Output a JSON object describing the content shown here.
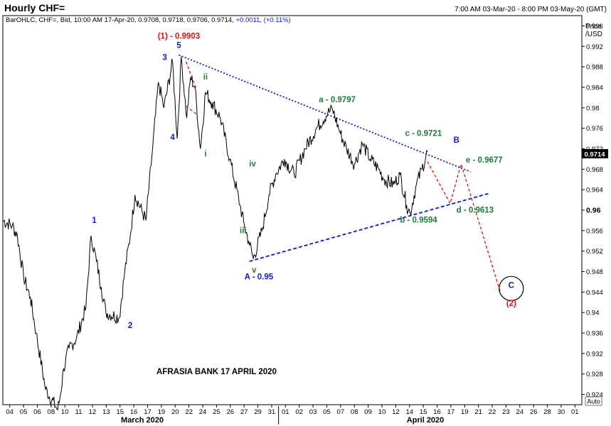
{
  "header": {
    "title": "Hourly CHF=",
    "date_range": "7:00 AM 03-Mar-20 - 8:00 PM 03-May-20 (GMT)",
    "info_prefix": "BarOHLC, CHF=, Bid, 10:00 AM 17-Apr-20, 0.9708, 0.9718, 0.9706, 0.9714, ",
    "info_change": "+0.0011, (+0.11%)"
  },
  "axis": {
    "price_label": "Price",
    "unit_label": "/USD",
    "last_price": "0.9714",
    "auto_label": "Auto",
    "month_march": "March 2020",
    "month_april": "April 2020"
  },
  "watermark": "AFRASIA BANK 17 APRIL 2020",
  "colors": {
    "blue": "#0b1bd0",
    "green": "#1f7a3a",
    "red": "#e01010",
    "price_line": "#000000"
  },
  "chart_data": {
    "type": "line",
    "series": [
      {
        "name": "",
        "x": [
          "2020-03-03T07:00",
          "2020-03-04T07:00",
          "2020-03-04T20:00",
          "2020-03-05T12:00",
          "2020-03-06T05:00",
          "2020-03-06T20:00",
          "2020-03-07T20:00",
          "2020-03-09T03:00",
          "2020-03-09T10:00",
          "2020-03-09T18:00",
          "2020-03-10T08:00",
          "2020-03-11T03:00",
          "2020-03-12T03:00",
          "2020-03-12T16:00",
          "2020-03-13T06:00",
          "2020-03-13T18:00",
          "2020-03-14T06:00",
          "2020-03-15T16:00",
          "2020-03-16T06:00",
          "2020-03-16T20:00",
          "2020-03-17T08:00",
          "2020-03-18T12:00",
          "2020-03-19T05:00",
          "2020-03-19T20:00",
          "2020-03-20T10:00",
          "2020-03-21T08:00",
          "2020-03-21T20:00",
          "2020-03-22T06:00",
          "2020-03-22T20:00",
          "2020-03-23T06:00",
          "2020-03-23T17:00",
          "2020-03-24T07:00",
          "2020-03-24T20:00",
          "2020-03-25T13:00",
          "2020-03-26T10:00",
          "2020-03-27T10:00",
          "2020-03-28T12:00",
          "2020-03-28T23:00",
          "2020-03-29T10:00",
          "2020-03-29T22:00",
          "2020-03-30T20:00",
          "2020-03-31T14:00",
          "2020-04-01T07:00",
          "2020-04-02T05:00",
          "2020-04-03T06:00",
          "2020-04-04T10:00",
          "2020-04-05T15:00",
          "2020-04-06T20:00",
          "2020-04-07T08:00",
          "2020-04-08T04:00",
          "2020-04-08T20:00",
          "2020-04-09T16:00",
          "2020-04-10T12:00",
          "2020-04-11T08:00",
          "2020-04-12T06:00",
          "2020-04-12T20:00",
          "2020-04-13T20:00",
          "2020-04-14T12:00",
          "2020-04-15T05:00",
          "2020-04-15T14:00",
          "2020-04-16T06:00",
          "2020-04-16T20:00",
          "2020-04-17T10:00"
        ],
        "values": [
          0.958,
          0.957,
          0.955,
          0.947,
          0.943,
          0.936,
          0.925,
          0.921,
          0.924,
          0.929,
          0.933,
          0.935,
          0.941,
          0.955,
          0.95,
          0.945,
          0.94,
          0.939,
          0.948,
          0.955,
          0.963,
          0.958,
          0.972,
          0.985,
          0.98,
          0.989,
          0.974,
          0.99,
          0.978,
          0.986,
          0.984,
          0.972,
          0.983,
          0.981,
          0.978,
          0.97,
          0.961,
          0.957,
          0.954,
          0.9505,
          0.956,
          0.963,
          0.967,
          0.97,
          0.967,
          0.972,
          0.976,
          0.979,
          0.9797,
          0.975,
          0.972,
          0.969,
          0.973,
          0.97,
          0.968,
          0.966,
          0.965,
          0.967,
          0.961,
          0.9594,
          0.965,
          0.968,
          0.9714
        ]
      }
    ],
    "x_tick_labels": [
      "04",
      "05",
      "06",
      "08",
      "10",
      "11",
      "12",
      "13",
      "15",
      "16",
      "17",
      "19",
      "20",
      "22",
      "24",
      "25",
      "26",
      "27",
      "29",
      "31",
      "01",
      "02",
      "03",
      "05",
      "07",
      "08",
      "09",
      "10",
      "12",
      "14",
      "15",
      "16",
      "17",
      "19",
      "21",
      "22",
      "23",
      "24",
      "26",
      "28",
      "30",
      "01"
    ],
    "ylim": [
      0.922,
      0.998
    ],
    "y_ticks": [
      0.924,
      0.928,
      0.932,
      0.936,
      0.94,
      0.944,
      0.948,
      0.952,
      0.956,
      0.96,
      0.964,
      0.968,
      0.972,
      0.976,
      0.98,
      0.984,
      0.988,
      0.992,
      0.996
    ],
    "y_tick_labels": [
      "0.924",
      "0.928",
      "0.932",
      "0.936",
      "0.94",
      "0.944",
      "0.948",
      "0.952",
      "0.956",
      "0.96",
      "0.964",
      "0.968",
      "0.972",
      "0.976",
      "0.98",
      "0.984",
      "0.988",
      "0.992",
      "0.996"
    ],
    "grid": false,
    "trendlines": [
      {
        "from": [
          "2020-03-22T00:00",
          0.9903
        ],
        "to": [
          "2020-04-22T00:00",
          0.9675
        ],
        "color": "#0b1bd0",
        "style": "dotted"
      },
      {
        "from": [
          "2020-03-29T12:00",
          0.95
        ],
        "to": [
          "2020-04-24T00:00",
          0.9633
        ],
        "color": "#0b1bd0",
        "style": "dashed"
      }
    ],
    "projection": [
      {
        "points": [
          [
            "2020-03-22T18:00",
            0.989
          ],
          [
            "2020-03-23T20:00",
            0.9838
          ]
        ],
        "color": "#e01010"
      },
      {
        "points": [
          [
            "2020-03-22T18:00",
            0.9803
          ],
          [
            "2020-03-23T20:00",
            0.9788
          ]
        ],
        "color": "#e01010"
      },
      {
        "points": [
          [
            "2020-04-17T10:00",
            0.9695
          ],
          [
            "2020-04-19T20:00",
            0.9613
          ],
          [
            "2020-04-21T00:00",
            0.969
          ],
          [
            "2020-04-25T04:00",
            0.944
          ]
        ],
        "color": "#e01010"
      }
    ],
    "annotations": [
      {
        "text": "(1) - 0.9903",
        "at": [
          "2020-03-22T00:00",
          0.9935
        ],
        "color": "#e01010",
        "anchor": "middle"
      },
      {
        "text": "5",
        "at": [
          "2020-03-22T00:00",
          0.9917
        ],
        "color": "#0b1bd0",
        "anchor": "middle"
      },
      {
        "text": "3",
        "at": [
          "2020-03-20T12:00",
          0.9893
        ],
        "color": "#0b1bd0",
        "anchor": "middle"
      },
      {
        "text": "4",
        "at": [
          "2020-03-21T08:00",
          0.9737
        ],
        "color": "#0b1bd0",
        "anchor": "middle"
      },
      {
        "text": "1",
        "at": [
          "2020-03-13T00:00",
          0.9575
        ],
        "color": "#0b1bd0",
        "anchor": "middle"
      },
      {
        "text": "2",
        "at": [
          "2020-03-16T20:00",
          0.937
        ],
        "color": "#0b1bd0",
        "anchor": "middle"
      },
      {
        "text": "ii",
        "at": [
          "2020-03-24T20:00",
          0.9855
        ],
        "color": "#1f7a3a",
        "anchor": "middle"
      },
      {
        "text": "i",
        "at": [
          "2020-03-24T20:00",
          0.9705
        ],
        "color": "#1f7a3a",
        "anchor": "middle"
      },
      {
        "text": "iv",
        "at": [
          "2020-03-29T20:00",
          0.9685
        ],
        "color": "#1f7a3a",
        "anchor": "middle"
      },
      {
        "text": "iii",
        "at": [
          "2020-03-28T20:00",
          0.9555
        ],
        "color": "#1f7a3a",
        "anchor": "middle"
      },
      {
        "text": "v",
        "at": [
          "2020-03-30T00:00",
          0.9478
        ],
        "color": "#1f7a3a",
        "anchor": "middle"
      },
      {
        "text": "A - 0.95",
        "at": [
          "2020-03-30T12:00",
          0.9465
        ],
        "color": "#0b1bd0",
        "anchor": "middle"
      },
      {
        "text": "a - 0.9797",
        "at": [
          "2020-04-07T20:00",
          0.9811
        ],
        "color": "#1f7a3a",
        "anchor": "middle"
      },
      {
        "text": "c - 0.9721",
        "at": [
          "2020-04-17T00:00",
          0.9745
        ],
        "color": "#1f7a3a",
        "anchor": "middle"
      },
      {
        "text": "B",
        "at": [
          "2020-04-20T12:00",
          0.9732
        ],
        "color": "#0b1bd0",
        "anchor": "middle"
      },
      {
        "text": "e - 0.9677",
        "at": [
          "2020-04-21T12:00",
          0.9693
        ],
        "color": "#1f7a3a",
        "anchor": "start"
      },
      {
        "text": "d - 0.9613",
        "at": [
          "2020-04-20T12:00",
          0.9595
        ],
        "color": "#1f7a3a",
        "anchor": "start"
      },
      {
        "text": "b - 0.9594",
        "at": [
          "2020-04-14T12:00",
          0.9576
        ],
        "color": "#1f7a3a",
        "anchor": "start"
      },
      {
        "text": "C",
        "at": [
          "2020-04-26T08:00",
          0.9448
        ],
        "color": "#0b1bd0",
        "anchor": "middle"
      },
      {
        "text": "(2)",
        "at": [
          "2020-04-26T08:00",
          0.9413
        ],
        "color": "#e01010",
        "anchor": "middle"
      }
    ],
    "circle": {
      "at": [
        "2020-04-26T08:00",
        0.9447
      ],
      "color": "#000000"
    }
  }
}
